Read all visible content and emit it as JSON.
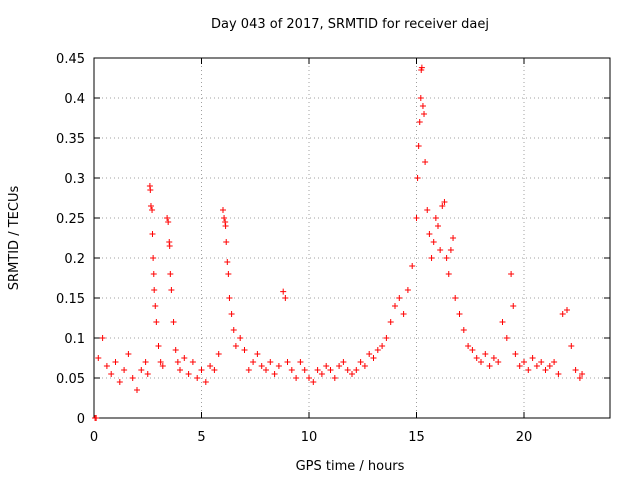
{
  "chart_data": {
    "type": "scatter",
    "title": "Day 043 of 2017, SRMTID for receiver daej",
    "xlabel": "GPS time / hours",
    "ylabel": "SRMTID / TECUs",
    "xlim": [
      0,
      24
    ],
    "ylim": [
      0,
      0.45
    ],
    "x_ticks": [
      0,
      5,
      10,
      15,
      20
    ],
    "x_tick_labels": [
      "0",
      "5",
      "10",
      "15",
      "20"
    ],
    "y_ticks": [
      0,
      0.05,
      0.1,
      0.15,
      0.2,
      0.25,
      0.3,
      0.35,
      0.4,
      0.45
    ],
    "y_tick_labels": [
      "0",
      "0.05",
      "0.1",
      "0.15",
      "0.2",
      "0.25",
      "0.3",
      "0.35",
      "0.4",
      "0.45"
    ],
    "grid": true,
    "marker": "+",
    "color": "#ff0000",
    "series": [
      {
        "name": "SRMTID",
        "points": [
          [
            0.05,
            0.0
          ],
          [
            0.1,
            0.0
          ],
          [
            0.2,
            0.075
          ],
          [
            0.4,
            0.1
          ],
          [
            0.6,
            0.065
          ],
          [
            0.8,
            0.055
          ],
          [
            1.0,
            0.07
          ],
          [
            1.2,
            0.045
          ],
          [
            1.4,
            0.06
          ],
          [
            1.6,
            0.08
          ],
          [
            1.8,
            0.05
          ],
          [
            2.0,
            0.035
          ],
          [
            2.2,
            0.06
          ],
          [
            2.4,
            0.07
          ],
          [
            2.5,
            0.055
          ],
          [
            2.6,
            0.29
          ],
          [
            2.62,
            0.285
          ],
          [
            2.65,
            0.265
          ],
          [
            2.7,
            0.26
          ],
          [
            2.72,
            0.23
          ],
          [
            2.75,
            0.2
          ],
          [
            2.78,
            0.18
          ],
          [
            2.8,
            0.16
          ],
          [
            2.85,
            0.14
          ],
          [
            2.9,
            0.12
          ],
          [
            3.0,
            0.09
          ],
          [
            3.1,
            0.07
          ],
          [
            3.2,
            0.065
          ],
          [
            3.4,
            0.25
          ],
          [
            3.45,
            0.245
          ],
          [
            3.5,
            0.22
          ],
          [
            3.52,
            0.215
          ],
          [
            3.55,
            0.18
          ],
          [
            3.6,
            0.16
          ],
          [
            3.7,
            0.12
          ],
          [
            3.8,
            0.085
          ],
          [
            3.9,
            0.07
          ],
          [
            4.0,
            0.06
          ],
          [
            4.2,
            0.075
          ],
          [
            4.4,
            0.055
          ],
          [
            4.6,
            0.07
          ],
          [
            4.8,
            0.05
          ],
          [
            5.0,
            0.06
          ],
          [
            5.2,
            0.045
          ],
          [
            5.4,
            0.065
          ],
          [
            5.6,
            0.06
          ],
          [
            5.8,
            0.08
          ],
          [
            6.0,
            0.26
          ],
          [
            6.05,
            0.25
          ],
          [
            6.1,
            0.245
          ],
          [
            6.12,
            0.24
          ],
          [
            6.15,
            0.22
          ],
          [
            6.2,
            0.195
          ],
          [
            6.25,
            0.18
          ],
          [
            6.3,
            0.15
          ],
          [
            6.4,
            0.13
          ],
          [
            6.5,
            0.11
          ],
          [
            6.6,
            0.09
          ],
          [
            6.8,
            0.1
          ],
          [
            7.0,
            0.085
          ],
          [
            7.2,
            0.06
          ],
          [
            7.4,
            0.07
          ],
          [
            7.6,
            0.08
          ],
          [
            7.8,
            0.065
          ],
          [
            8.0,
            0.06
          ],
          [
            8.2,
            0.07
          ],
          [
            8.4,
            0.055
          ],
          [
            8.6,
            0.065
          ],
          [
            8.8,
            0.158
          ],
          [
            8.9,
            0.15
          ],
          [
            9.0,
            0.07
          ],
          [
            9.2,
            0.06
          ],
          [
            9.4,
            0.05
          ],
          [
            9.6,
            0.07
          ],
          [
            9.8,
            0.06
          ],
          [
            10.0,
            0.05
          ],
          [
            10.2,
            0.045
          ],
          [
            10.4,
            0.06
          ],
          [
            10.6,
            0.055
          ],
          [
            10.8,
            0.065
          ],
          [
            11.0,
            0.06
          ],
          [
            11.2,
            0.05
          ],
          [
            11.4,
            0.065
          ],
          [
            11.6,
            0.07
          ],
          [
            11.8,
            0.06
          ],
          [
            12.0,
            0.055
          ],
          [
            12.2,
            0.06
          ],
          [
            12.4,
            0.07
          ],
          [
            12.6,
            0.065
          ],
          [
            12.8,
            0.08
          ],
          [
            13.0,
            0.075
          ],
          [
            13.2,
            0.085
          ],
          [
            13.4,
            0.09
          ],
          [
            13.6,
            0.1
          ],
          [
            13.8,
            0.12
          ],
          [
            14.0,
            0.14
          ],
          [
            14.2,
            0.15
          ],
          [
            14.4,
            0.13
          ],
          [
            14.6,
            0.16
          ],
          [
            14.8,
            0.19
          ],
          [
            15.0,
            0.25
          ],
          [
            15.05,
            0.3
          ],
          [
            15.1,
            0.34
          ],
          [
            15.15,
            0.37
          ],
          [
            15.2,
            0.4
          ],
          [
            15.22,
            0.435
          ],
          [
            15.25,
            0.438
          ],
          [
            15.3,
            0.39
          ],
          [
            15.35,
            0.38
          ],
          [
            15.4,
            0.32
          ],
          [
            15.5,
            0.26
          ],
          [
            15.6,
            0.23
          ],
          [
            15.7,
            0.2
          ],
          [
            15.8,
            0.22
          ],
          [
            15.9,
            0.25
          ],
          [
            16.0,
            0.24
          ],
          [
            16.1,
            0.21
          ],
          [
            16.2,
            0.265
          ],
          [
            16.3,
            0.27
          ],
          [
            16.4,
            0.2
          ],
          [
            16.5,
            0.18
          ],
          [
            16.6,
            0.21
          ],
          [
            16.7,
            0.225
          ],
          [
            16.8,
            0.15
          ],
          [
            17.0,
            0.13
          ],
          [
            17.2,
            0.11
          ],
          [
            17.4,
            0.09
          ],
          [
            17.6,
            0.085
          ],
          [
            17.8,
            0.075
          ],
          [
            18.0,
            0.07
          ],
          [
            18.2,
            0.08
          ],
          [
            18.4,
            0.065
          ],
          [
            18.6,
            0.075
          ],
          [
            18.8,
            0.07
          ],
          [
            19.0,
            0.12
          ],
          [
            19.2,
            0.1
          ],
          [
            19.4,
            0.18
          ],
          [
            19.5,
            0.14
          ],
          [
            19.6,
            0.08
          ],
          [
            19.8,
            0.065
          ],
          [
            20.0,
            0.07
          ],
          [
            20.2,
            0.06
          ],
          [
            20.4,
            0.075
          ],
          [
            20.6,
            0.065
          ],
          [
            20.8,
            0.07
          ],
          [
            21.0,
            0.06
          ],
          [
            21.2,
            0.065
          ],
          [
            21.4,
            0.07
          ],
          [
            21.6,
            0.055
          ],
          [
            21.8,
            0.13
          ],
          [
            22.0,
            0.135
          ],
          [
            22.2,
            0.09
          ],
          [
            22.4,
            0.06
          ],
          [
            22.6,
            0.05
          ],
          [
            22.7,
            0.055
          ]
        ]
      }
    ]
  }
}
